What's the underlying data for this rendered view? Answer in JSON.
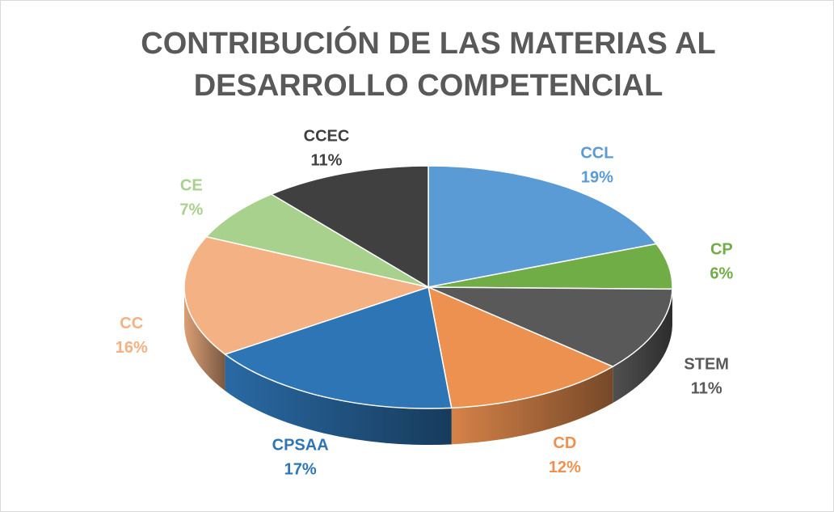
{
  "chart_data": {
    "type": "pie3d",
    "title_lines": [
      "CONTRIBUCIÓN DE LAS MATERIAS AL",
      "DESARROLLO COMPETENCIAL"
    ],
    "categories": [
      "CCL",
      "CP",
      "STEM",
      "CD",
      "CPSAA",
      "CC",
      "CE",
      "CCEC"
    ],
    "values": [
      19,
      6,
      11,
      12,
      17,
      16,
      7,
      11
    ],
    "value_labels": [
      "19%",
      "6%",
      "11%",
      "12%",
      "17%",
      "16%",
      "7%",
      "11%"
    ],
    "colors": [
      "#5b9bd5",
      "#70ad47",
      "#595959",
      "#ed9150",
      "#2e75b6",
      "#f4b183",
      "#a9d18e",
      "#404040"
    ]
  }
}
